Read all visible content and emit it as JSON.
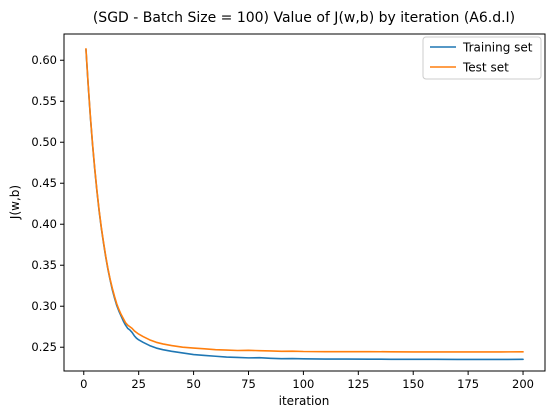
{
  "chart_data": {
    "type": "line",
    "title": "(SGD - Batch Size = 100) Value of J(w,b) by iteration (A6.d.I)",
    "xlabel": "iteration",
    "ylabel": "J(w,b)",
    "xlim": [
      -9,
      210
    ],
    "ylim": [
      0.221,
      0.632
    ],
    "x_ticks": [
      0,
      25,
      50,
      75,
      100,
      125,
      150,
      175,
      200
    ],
    "y_ticks": [
      0.25,
      0.3,
      0.35,
      0.4,
      0.45,
      0.5,
      0.55,
      0.6
    ],
    "grid": false,
    "legend_position": "upper-right",
    "series": [
      {
        "name": "Training set",
        "color": "#1f77b4",
        "points": [
          [
            1,
            0.613
          ],
          [
            2,
            0.57
          ],
          [
            3,
            0.531
          ],
          [
            4,
            0.497
          ],
          [
            5,
            0.467
          ],
          [
            6,
            0.44
          ],
          [
            7,
            0.416
          ],
          [
            8,
            0.395
          ],
          [
            9,
            0.377
          ],
          [
            10,
            0.36
          ],
          [
            11,
            0.345
          ],
          [
            12,
            0.332
          ],
          [
            13,
            0.32
          ],
          [
            14,
            0.31
          ],
          [
            15,
            0.301
          ],
          [
            16,
            0.294
          ],
          [
            17,
            0.288
          ],
          [
            18,
            0.282
          ],
          [
            19,
            0.277
          ],
          [
            20,
            0.273
          ],
          [
            21,
            0.271
          ],
          [
            22,
            0.268
          ],
          [
            23,
            0.264
          ],
          [
            24,
            0.261
          ],
          [
            25,
            0.259
          ],
          [
            27,
            0.256
          ],
          [
            30,
            0.252
          ],
          [
            33,
            0.249
          ],
          [
            36,
            0.247
          ],
          [
            40,
            0.245
          ],
          [
            45,
            0.243
          ],
          [
            50,
            0.241
          ],
          [
            55,
            0.24
          ],
          [
            60,
            0.239
          ],
          [
            65,
            0.238
          ],
          [
            70,
            0.2375
          ],
          [
            75,
            0.237
          ],
          [
            80,
            0.2372
          ],
          [
            85,
            0.2365
          ],
          [
            90,
            0.236
          ],
          [
            95,
            0.2362
          ],
          [
            100,
            0.2358
          ],
          [
            110,
            0.2356
          ],
          [
            120,
            0.2355
          ],
          [
            130,
            0.2354
          ],
          [
            140,
            0.2353
          ],
          [
            150,
            0.2352
          ],
          [
            160,
            0.2352
          ],
          [
            170,
            0.2351
          ],
          [
            180,
            0.2351
          ],
          [
            190,
            0.2351
          ],
          [
            200,
            0.2352
          ]
        ]
      },
      {
        "name": "Test set",
        "color": "#ff7f0e",
        "points": [
          [
            1,
            0.614
          ],
          [
            2,
            0.571
          ],
          [
            3,
            0.532
          ],
          [
            4,
            0.498
          ],
          [
            5,
            0.468
          ],
          [
            6,
            0.441
          ],
          [
            7,
            0.417
          ],
          [
            8,
            0.396
          ],
          [
            9,
            0.378
          ],
          [
            10,
            0.361
          ],
          [
            11,
            0.346
          ],
          [
            12,
            0.333
          ],
          [
            13,
            0.322
          ],
          [
            14,
            0.312
          ],
          [
            15,
            0.303
          ],
          [
            16,
            0.296
          ],
          [
            17,
            0.29
          ],
          [
            18,
            0.285
          ],
          [
            19,
            0.28
          ],
          [
            20,
            0.277
          ],
          [
            21,
            0.275
          ],
          [
            22,
            0.273
          ],
          [
            23,
            0.27
          ],
          [
            24,
            0.268
          ],
          [
            25,
            0.266
          ],
          [
            27,
            0.263
          ],
          [
            30,
            0.259
          ],
          [
            33,
            0.256
          ],
          [
            36,
            0.254
          ],
          [
            40,
            0.252
          ],
          [
            45,
            0.25
          ],
          [
            50,
            0.249
          ],
          [
            55,
            0.248
          ],
          [
            60,
            0.247
          ],
          [
            65,
            0.2465
          ],
          [
            70,
            0.246
          ],
          [
            75,
            0.2462
          ],
          [
            80,
            0.2458
          ],
          [
            85,
            0.2455
          ],
          [
            90,
            0.245
          ],
          [
            95,
            0.2452
          ],
          [
            100,
            0.2448
          ],
          [
            110,
            0.2446
          ],
          [
            120,
            0.2445
          ],
          [
            130,
            0.2446
          ],
          [
            140,
            0.2444
          ],
          [
            150,
            0.2443
          ],
          [
            160,
            0.2443
          ],
          [
            170,
            0.2442
          ],
          [
            180,
            0.2442
          ],
          [
            190,
            0.2443
          ],
          [
            200,
            0.2444
          ]
        ]
      }
    ]
  }
}
